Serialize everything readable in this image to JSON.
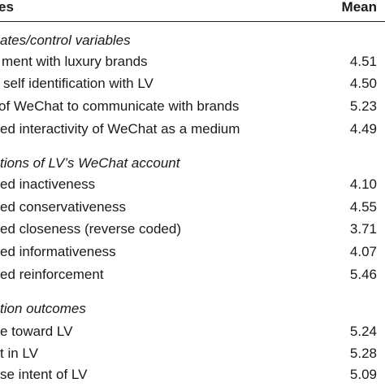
{
  "header": {
    "label": "es",
    "mean": "Mean"
  },
  "sections": [
    {
      "title": "ates/control variables",
      "rows": [
        {
          "label": "ment with luxury brands",
          "mean": "4.51"
        },
        {
          "label": "self identification with LV",
          "mean": "4.50"
        },
        {
          "label": "of WeChat to communicate with brands",
          "mean": "5.23"
        },
        {
          "label": "ed interactivity of WeChat as a medium",
          "mean": "4.49"
        }
      ]
    },
    {
      "title": "tions of LV’s WeChat account",
      "rows": [
        {
          "label": "ed inactiveness",
          "mean": "4.10"
        },
        {
          "label": "ed conservativeness",
          "mean": "4.55"
        },
        {
          "label": "ed closeness (reverse coded)",
          "mean": "3.71"
        },
        {
          "label": "ed informativeness",
          "mean": "4.07"
        },
        {
          "label": "ed reinforcement",
          "mean": "5.46"
        }
      ]
    },
    {
      "title": "tion outcomes",
      "rows": [
        {
          "label": "e toward LV",
          "mean": "5.24"
        },
        {
          "label": "t in LV",
          "mean": "5.28"
        },
        {
          "label": "se intent of LV",
          "mean": "5.09"
        }
      ]
    }
  ]
}
